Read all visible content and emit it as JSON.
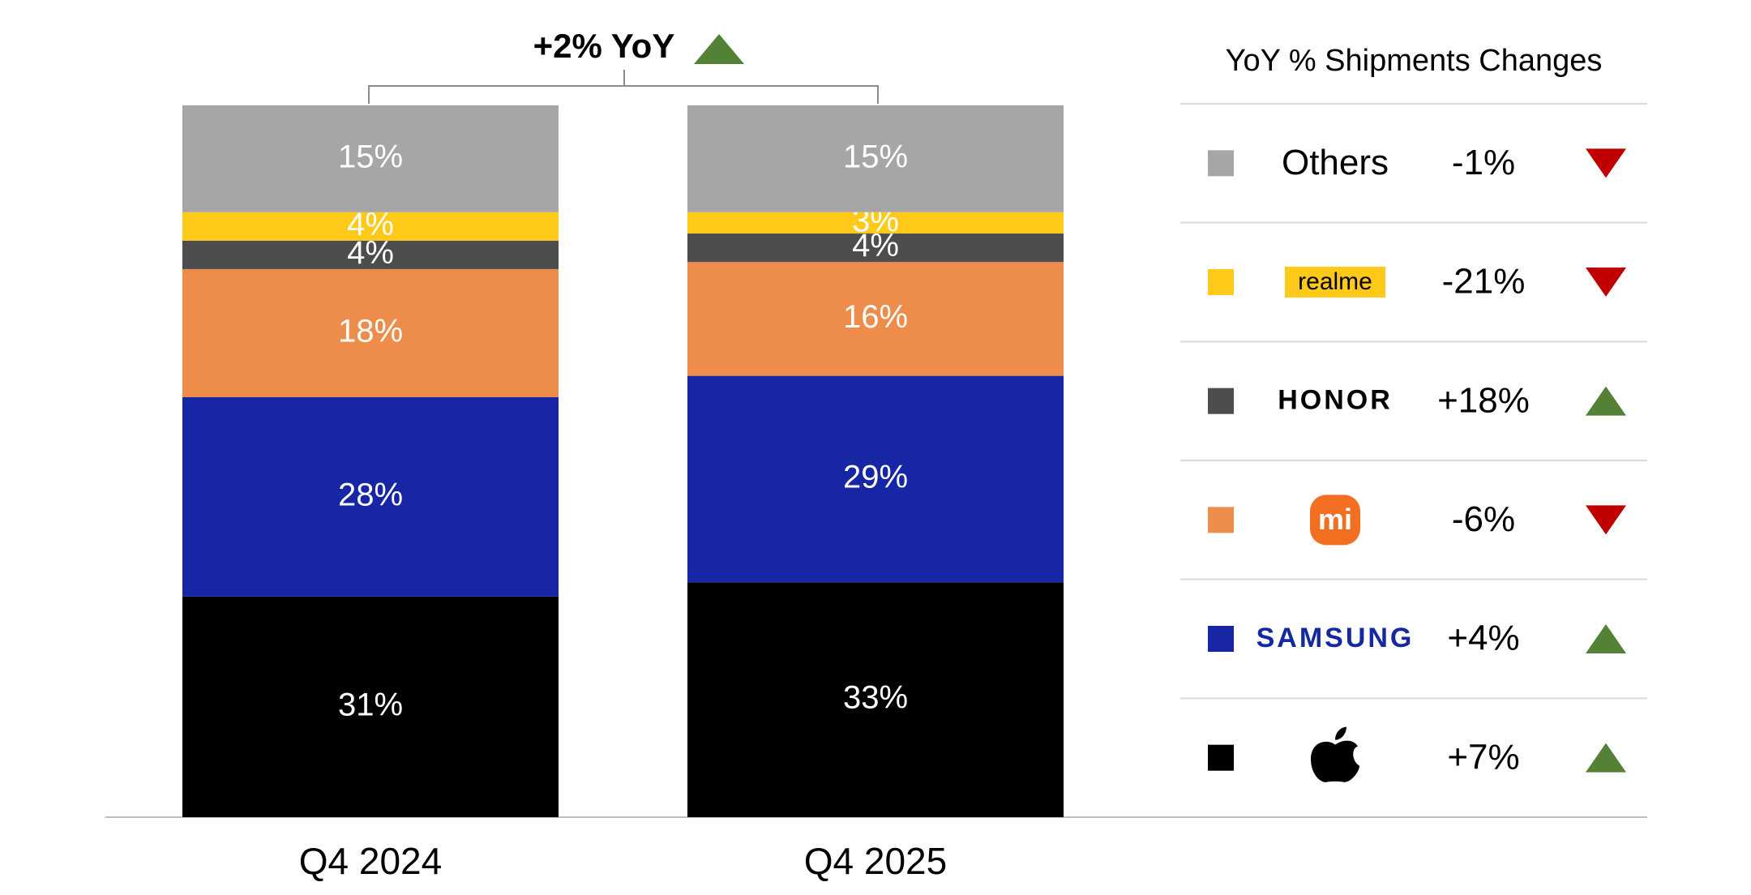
{
  "chart_data": {
    "type": "stacked-bar",
    "annotation": "+2% YoY",
    "legend_title": "YoY % Shipments Changes",
    "categories": [
      "Q4 2024",
      "Q4 2025"
    ],
    "ylim": [
      0,
      100
    ],
    "series": [
      {
        "color": "#000000",
        "values": [
          31,
          33
        ],
        "value_labels": [
          "31%",
          "33%"
        ],
        "yoy": 7,
        "yoy_label": "+7%"
      },
      {
        "name": "SAMSUNG",
        "color": "#1626a4",
        "values": [
          28,
          29
        ],
        "value_labels": [
          "28%",
          "29%"
        ],
        "yoy": 4,
        "yoy_label": "+4%"
      },
      {
        "name": "mi",
        "color": "#ed8c4b",
        "values": [
          18,
          16
        ],
        "value_labels": [
          "18%",
          "16%"
        ],
        "yoy": -6,
        "yoy_label": "-6%"
      },
      {
        "name": "HONOR",
        "color": "#4d4d4d",
        "values": [
          4,
          4
        ],
        "value_labels": [
          "4%",
          "4%"
        ],
        "yoy": 18,
        "yoy_label": "+18%"
      },
      {
        "name": "realme",
        "color": "#ffc91a",
        "values": [
          4,
          3
        ],
        "value_labels": [
          "4%",
          "3%"
        ],
        "yoy": -21,
        "yoy_label": "-21%"
      },
      {
        "name": "Others",
        "color": "#a6a6a6",
        "values": [
          15,
          15
        ],
        "value_labels": [
          "15%",
          "15%"
        ],
        "yoy": -1,
        "yoy_label": "-1%"
      }
    ]
  }
}
